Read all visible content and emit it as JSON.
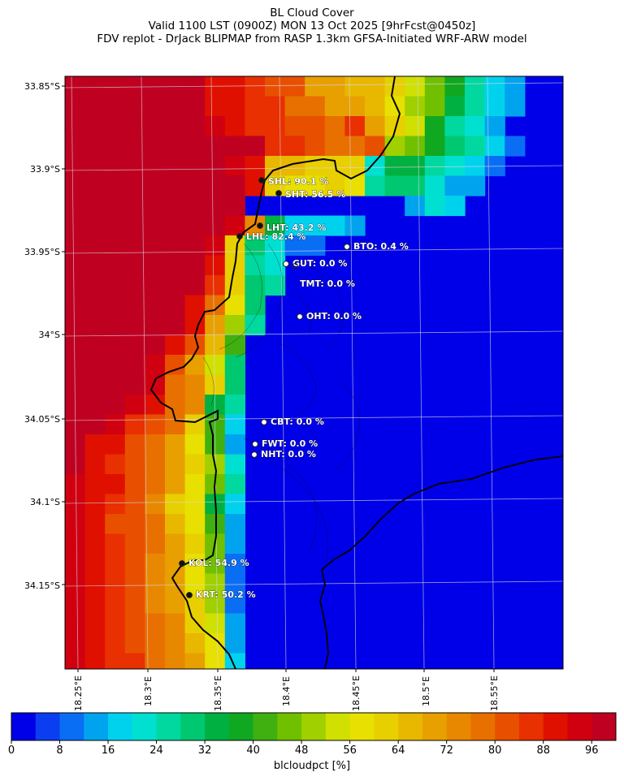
{
  "title": {
    "line1": "BL Cloud Cover",
    "line2": "Valid 1100 LST (0900Z) MON 13 Oct 2025 [9hrFcst@0450z]",
    "line3": "FDV replot - DrJack BLIPMAP from RASP 1.3km GFSA-Initiated WRF-ARW model"
  },
  "map": {
    "lat_labels": [
      "33.85°S",
      "33.9°S",
      "33.95°S",
      "34°S",
      "34.05°S",
      "34.1°S",
      "34.15°S"
    ],
    "lon_labels": [
      "18.25°E",
      "18.3°E",
      "18.35°E",
      "18.4°E",
      "18.45°E",
      "18.5°E",
      "18.55°E"
    ],
    "stations": [
      {
        "code": "SHL",
        "label": "SHL: 90.1 %",
        "value": 90.1
      },
      {
        "code": "SHT",
        "label": "SHT: 56.5 %",
        "value": 56.5
      },
      {
        "code": "LHT",
        "label": "LHT: 43.2 %",
        "value": 43.2
      },
      {
        "code": "LHL",
        "label": "LHL: 82.4 %",
        "value": 82.4
      },
      {
        "code": "BTO",
        "label": "BTO: 0.4 %",
        "value": 0.4
      },
      {
        "code": "GUT",
        "label": "GUT: 0.0 %",
        "value": 0.0
      },
      {
        "code": "TMT",
        "label": "TMT: 0.0 %",
        "value": 0.0
      },
      {
        "code": "OHT",
        "label": "OHT: 0.0 %",
        "value": 0.0
      },
      {
        "code": "CBT",
        "label": "CBT: 0.0 %",
        "value": 0.0
      },
      {
        "code": "FWT",
        "label": "FWT: 0.0 %",
        "value": 0.0
      },
      {
        "code": "NHT",
        "label": "NHT: 0.0 %",
        "value": 0.0
      },
      {
        "code": "KOL",
        "label": "KOL: 54.9 %",
        "value": 54.9
      },
      {
        "code": "KRT",
        "label": "KRT: 50.2 %",
        "value": 50.2
      }
    ]
  },
  "colorbar": {
    "label": "blcloudpct [%]",
    "ticks": [
      "0",
      "8",
      "16",
      "24",
      "32",
      "40",
      "48",
      "56",
      "64",
      "72",
      "80",
      "88",
      "96"
    ],
    "min": 0,
    "max": 100,
    "colors": [
      "#0000e8",
      "#0a3ef0",
      "#0a6ef5",
      "#00a4ee",
      "#00d2ee",
      "#00e0d0",
      "#00d8a0",
      "#00c870",
      "#00b040",
      "#10a820",
      "#40b010",
      "#70c000",
      "#a0d000",
      "#d0e000",
      "#e8e000",
      "#e8d000",
      "#e8b800",
      "#e8a000",
      "#e88800",
      "#e87000",
      "#e85000",
      "#e83000",
      "#e01000",
      "#d00010",
      "#c00020"
    ]
  }
}
